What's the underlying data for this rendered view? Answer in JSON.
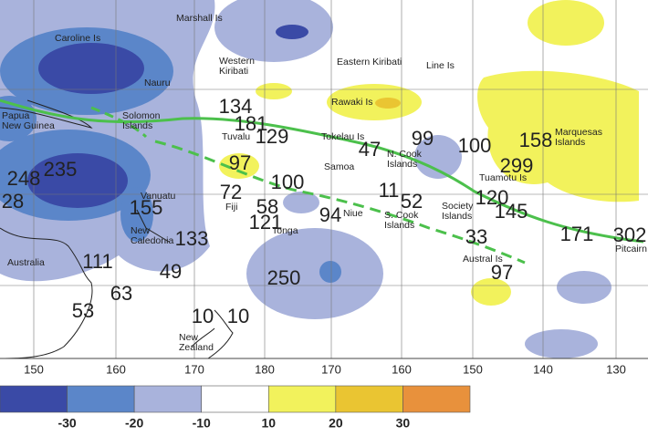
{
  "map": {
    "places": [
      [
        "Marshall Is"
      ],
      [
        "Caroline Is"
      ],
      [
        "Western",
        "Kiribati"
      ],
      [
        "Nauru"
      ],
      [
        "Eastern Kiribati"
      ],
      [
        "Line Is"
      ],
      [
        "Rawaki Is"
      ],
      [
        "Papua",
        "New Guinea"
      ],
      [
        "Solomon",
        "Islands"
      ],
      [
        "Tuvalu"
      ],
      [
        "Tokelau Is"
      ],
      [
        "N. Cook",
        "Islands"
      ],
      [
        "Marquesas",
        "Islands"
      ],
      [
        "Samoa"
      ],
      [
        "Tuamotu Is"
      ],
      [
        "Vanuatu"
      ],
      [
        "Fiji"
      ],
      [
        "Niue"
      ],
      [
        "S. Cook",
        "Islands"
      ],
      [
        "Society",
        "Islands"
      ],
      [
        "New",
        "Caledonia"
      ],
      [
        "Tonga"
      ],
      [
        "Australia"
      ],
      [
        "Austral Is"
      ],
      [
        "Pitcairn"
      ],
      [
        "New",
        "Zealand"
      ]
    ],
    "values": [
      134,
      181,
      129,
      97,
      72,
      58,
      100,
      121,
      248,
      235,
      28,
      155,
      133,
      111,
      49,
      63,
      53,
      250,
      94,
      47,
      11,
      52,
      99,
      100,
      158,
      299,
      120,
      145,
      33,
      97,
      171,
      302,
      10,
      10
    ],
    "lon_labels": [
      150,
      160,
      170,
      180,
      170,
      160,
      150,
      140,
      130
    ],
    "legend": {
      "labels": [
        -30,
        -20,
        -10,
        10,
        20,
        30
      ],
      "colors": [
        "#3a4aa6",
        "#5b86c9",
        "#a9b3dc",
        "#ffffff",
        "#f2f25c",
        "#eac532",
        "#e8913c"
      ]
    }
  }
}
